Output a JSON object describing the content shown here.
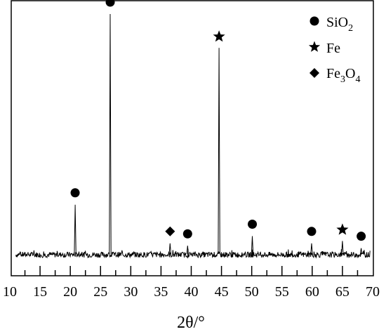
{
  "chart_data": {
    "type": "line",
    "title": "",
    "xlabel": "2θ/°",
    "ylabel": "",
    "xlim": [
      10,
      70
    ],
    "x_ticks": [
      "10",
      "15",
      "20",
      "25",
      "30",
      "35",
      "40",
      "45",
      "50",
      "55",
      "60",
      "65",
      "70"
    ],
    "series": [
      {
        "peaks": [
          {
            "x": 20.8,
            "intensity": 0.21,
            "phase": "SiO2"
          },
          {
            "x": 26.6,
            "intensity": 1.0,
            "phase": "SiO2"
          },
          {
            "x": 36.5,
            "intensity": 0.05,
            "phase": "Fe3O4"
          },
          {
            "x": 39.4,
            "intensity": 0.04,
            "phase": "SiO2"
          },
          {
            "x": 44.6,
            "intensity": 0.86,
            "phase": "Fe"
          },
          {
            "x": 50.1,
            "intensity": 0.08,
            "phase": "SiO2"
          },
          {
            "x": 59.9,
            "intensity": 0.05,
            "phase": "SiO2"
          },
          {
            "x": 65.0,
            "intensity": 0.06,
            "phase": "Fe"
          },
          {
            "x": 68.1,
            "intensity": 0.03,
            "phase": "SiO2"
          }
        ]
      }
    ],
    "legend_position": "top-right",
    "legend": [
      {
        "key": "SiO2",
        "base": "SiO",
        "sub": "2",
        "marker": "circle"
      },
      {
        "key": "Fe",
        "base": "Fe",
        "sub": "",
        "marker": "star"
      },
      {
        "key": "Fe3O4",
        "base": "Fe",
        "sub": "3",
        "mid": "O",
        "sub2": "4",
        "marker": "diamond"
      }
    ]
  }
}
